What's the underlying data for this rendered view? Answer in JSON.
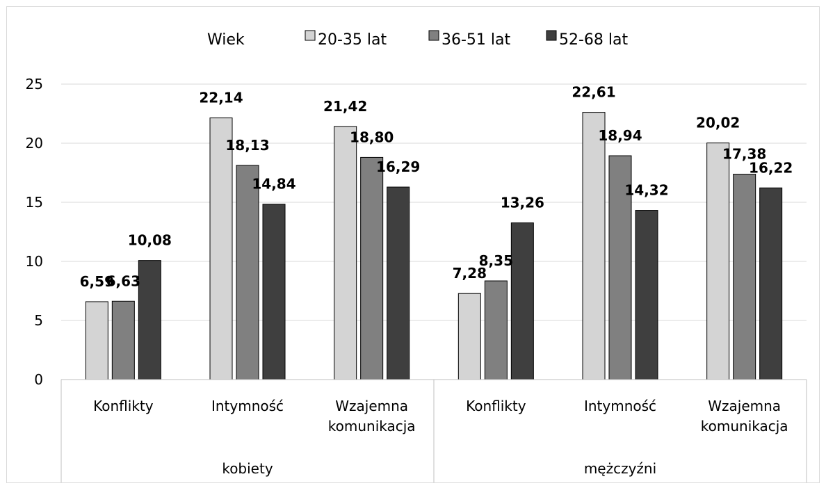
{
  "chart_data": {
    "type": "bar",
    "legend_title": "Wiek",
    "legend_position": "top",
    "groups": [
      {
        "label": "kobiety",
        "categories": [
          "Konflikty",
          "Intymność",
          "Wzajemna komunikacja"
        ]
      },
      {
        "label": "mężczyźni",
        "categories": [
          "Konflikty",
          "Intymność",
          "Wzajemna komunikacja"
        ]
      }
    ],
    "categories": [
      [
        "Konflikty"
      ],
      [
        "Intymność"
      ],
      [
        "Wzajemna",
        "komunikacja"
      ],
      [
        "Konflikty"
      ],
      [
        "Intymność"
      ],
      [
        "Wzajemna",
        "komunikacja"
      ]
    ],
    "series": [
      {
        "name": "20-35 lat",
        "color": "#d4d4d4",
        "values": [
          6.59,
          22.14,
          21.42,
          7.28,
          22.61,
          20.02
        ],
        "labels": [
          "6,59",
          "22,14",
          "21,42",
          "7,28",
          "22,61",
          "20,02"
        ]
      },
      {
        "name": "36-51 lat",
        "color": "#808080",
        "values": [
          6.63,
          18.13,
          18.8,
          8.35,
          18.94,
          17.38
        ],
        "labels": [
          "6,63",
          "18,13",
          "18,80",
          "8,35",
          "18,94",
          "17,38"
        ]
      },
      {
        "name": "52-68 lat",
        "color": "#3f3f3f",
        "values": [
          10.08,
          14.84,
          16.29,
          13.26,
          14.32,
          16.22
        ],
        "labels": [
          "10,08",
          "14,84",
          "16,29",
          "13,26",
          "14,32",
          "16,22"
        ]
      }
    ],
    "ylim": [
      0,
      25
    ],
    "yticks": [
      0,
      5,
      10,
      15,
      20,
      25
    ],
    "grid": true
  }
}
